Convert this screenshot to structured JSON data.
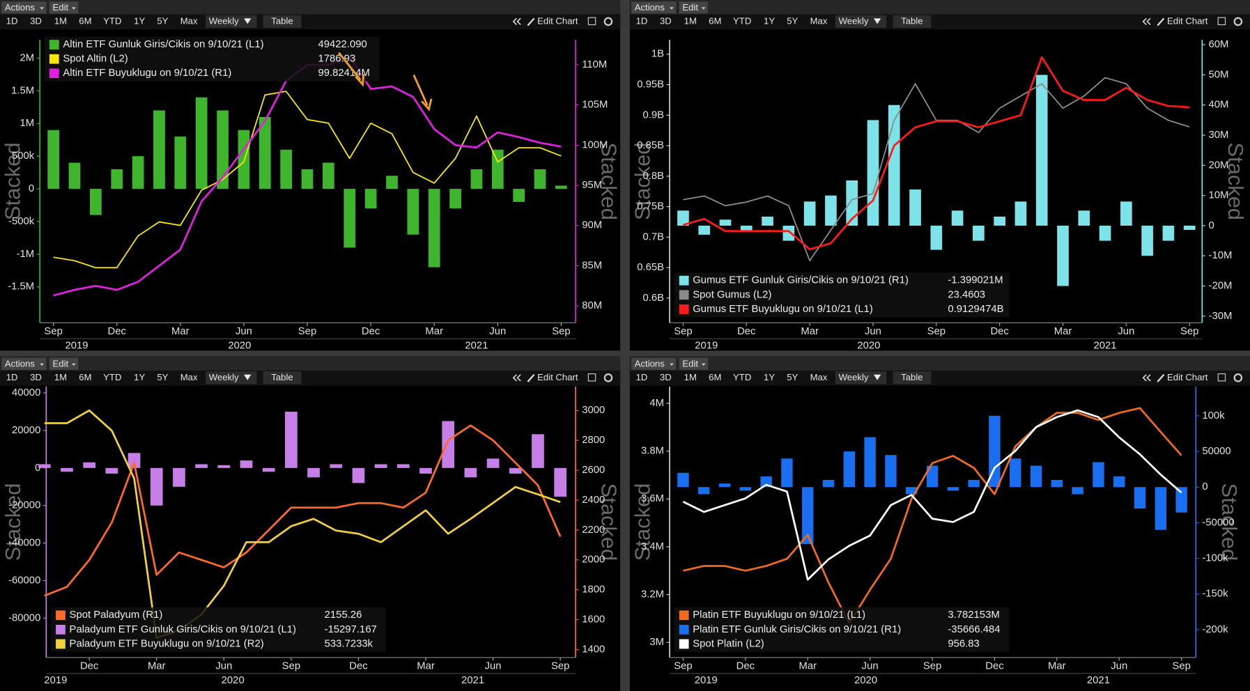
{
  "toolbar": {
    "actions": "Actions",
    "edit": "Edit",
    "ranges": [
      "1D",
      "3D",
      "1M",
      "6M",
      "YTD",
      "1Y",
      "5Y",
      "Max"
    ],
    "frequency": "Weekly",
    "table": "Table",
    "edit_chart": "Edit Chart"
  },
  "chart_data": [
    {
      "type": "combo",
      "ylabel": "Stacked",
      "y2label": "Stacked",
      "legend": "upper left",
      "x": [
        0,
        1,
        2,
        3,
        4,
        5,
        6,
        7,
        8,
        9,
        10,
        11,
        12,
        13,
        14,
        15,
        16,
        17,
        18,
        19,
        20,
        21,
        22,
        23,
        24
      ],
      "xlim": [
        -0.64,
        24.68
      ],
      "xticks": [
        {
          "value": 0,
          "label": "Sep"
        },
        {
          "value": 3,
          "label": "Dec"
        },
        {
          "value": 6,
          "label": "Mar"
        },
        {
          "value": 9,
          "label": "Jun"
        },
        {
          "value": 12,
          "label": "Sep"
        },
        {
          "value": 15,
          "label": "Dec"
        },
        {
          "value": 18,
          "label": "Mar"
        },
        {
          "value": 21,
          "label": "Jun"
        },
        {
          "value": 24,
          "label": "Sep"
        }
      ],
      "xgroups": [
        {
          "value": 1.1,
          "label": "2019"
        },
        {
          "value": 8.8,
          "label": "2020"
        },
        {
          "value": 20,
          "label": "2021"
        }
      ],
      "ylim": [
        -2050000,
        2280000
      ],
      "yticks": [
        {
          "value": 2000000,
          "label": "2M"
        },
        {
          "value": 1500000,
          "label": "1.5M"
        },
        {
          "value": 1000000,
          "label": "1M"
        },
        {
          "value": 500000,
          "label": "500k"
        },
        0,
        {
          "value": -500000,
          "label": "-500k"
        },
        {
          "value": -1000000,
          "label": "-1M"
        },
        {
          "value": -1500000,
          "label": "-1.5M"
        }
      ],
      "y2lim": [
        77900000,
        113100000
      ],
      "y2ticks": [
        {
          "value": 110000000,
          "label": "110M"
        },
        {
          "value": 105000000,
          "label": "105M"
        },
        {
          "value": 100000000,
          "label": "100M"
        },
        {
          "value": 95000000,
          "label": "95M"
        },
        {
          "value": 90000000,
          "label": "90M"
        },
        {
          "value": 85000000,
          "label": "85M"
        },
        {
          "value": 80000000,
          "label": "80M"
        }
      ],
      "y3lim": [
        1314,
        2116
      ],
      "ycolor": "#3fb52d",
      "y2color": "#e020e0",
      "series": [
        {
          "name": "Altin ETF Gunluk Giris/Cikis on 9/10/21 (L1)",
          "legend_value": "49422.090",
          "type": "bar",
          "axis": "y",
          "color": "#3fb52d",
          "values": [
            900000,
            400000,
            -400000,
            300000,
            500000,
            1200000,
            800000,
            1400000,
            1200000,
            900000,
            1100000,
            600000,
            300000,
            400000,
            -900000,
            -300000,
            200000,
            -700000,
            -1200000,
            -300000,
            300000,
            600000,
            -200000,
            300000,
            49422.09
          ]
        },
        {
          "name": "Spot Altin (L2)",
          "legend_value": "1786.93",
          "type": "line",
          "axis": "y3",
          "color": "#f5e50d",
          "values": [
            1500,
            1490,
            1470,
            1470,
            1560,
            1600,
            1590,
            1690,
            1720,
            1770,
            1960,
            1970,
            1890,
            1880,
            1780,
            1880,
            1850,
            1740,
            1710,
            1780,
            1900,
            1770,
            1810,
            1810,
            1786.93
          ]
        },
        {
          "name": "Altin ETF Buyuklugu on 9/10/21 (R1)",
          "legend_value": "99.82414M",
          "type": "line",
          "axis": "y2",
          "color": "#e020e0",
          "values": [
            81300000,
            82000000,
            82500000,
            82000000,
            83000000,
            85000000,
            87000000,
            93000000,
            96000000,
            99500000,
            103000000,
            108000000,
            110000000,
            110000000,
            111000000,
            107000000,
            107300000,
            106000000,
            102000000,
            100000000,
            99700000,
            101600000,
            101000000,
            100300000,
            99824140
          ]
        }
      ]
    },
    {
      "type": "combo",
      "ylabel": "Stacked",
      "y2label": "Stacked",
      "legend": "lower left",
      "x": [
        0,
        1,
        2,
        3,
        4,
        5,
        6,
        7,
        8,
        9,
        10,
        11,
        12,
        13,
        14,
        15,
        16,
        17,
        18,
        19,
        20,
        21,
        22,
        23,
        24
      ],
      "xlim": [
        -0.64,
        24.6
      ],
      "xticks": [
        {
          "value": 0,
          "label": "Sep"
        },
        {
          "value": 3,
          "label": "Dec"
        },
        {
          "value": 6,
          "label": "Mar"
        },
        {
          "value": 9,
          "label": "Jun"
        },
        {
          "value": 12,
          "label": "Sep"
        },
        {
          "value": 15,
          "label": "Dec"
        },
        {
          "value": 18,
          "label": "Mar"
        },
        {
          "value": 21,
          "label": "Jun"
        },
        {
          "value": 24,
          "label": "Sep"
        }
      ],
      "xgroups": [
        {
          "value": 1.1,
          "label": "2019"
        },
        {
          "value": 8.8,
          "label": "2020"
        },
        {
          "value": 20,
          "label": "2021"
        }
      ],
      "ylim": [
        559500000,
        1023500000
      ],
      "yticks": [
        {
          "value": 1000000000,
          "label": "1B"
        },
        {
          "value": 950000000,
          "label": "0.95B"
        },
        {
          "value": 900000000,
          "label": "0.9B"
        },
        {
          "value": 850000000,
          "label": "0.85B"
        },
        {
          "value": 800000000,
          "label": "0.8B"
        },
        {
          "value": 750000000,
          "label": "0.75B"
        },
        {
          "value": 700000000,
          "label": "0.7B"
        },
        {
          "value": 650000000,
          "label": "0.65B"
        },
        {
          "value": 600000000,
          "label": "0.6B"
        }
      ],
      "y2lim": [
        -32200000,
        61600000
      ],
      "y2ticks": [
        {
          "value": 60000000,
          "label": "60M"
        },
        {
          "value": 50000000,
          "label": "50M"
        },
        {
          "value": 40000000,
          "label": "40M"
        },
        {
          "value": 30000000,
          "label": "30M"
        },
        {
          "value": 20000000,
          "label": "20M"
        },
        {
          "value": 10000000,
          "label": "10M"
        },
        0,
        {
          "value": -10000000,
          "label": "-10M"
        },
        {
          "value": -20000000,
          "label": "-20M"
        },
        {
          "value": -30000000,
          "label": "-30M"
        }
      ],
      "y3lim": [
        7.4,
        30.6
      ],
      "ycolor": "#d0d0d0",
      "y2color": "#7de3e8",
      "series": [
        {
          "name": "Gumus ETF Gunluk Giris/Cikis on 9/10/21 (R1)",
          "legend_value": "-1.399021M",
          "type": "bar",
          "axis": "y2",
          "color": "#7de3e8",
          "values": [
            5000000,
            -3000000,
            2000000,
            -2000000,
            3000000,
            -5000000,
            8000000,
            10000000,
            15000000,
            35000000,
            40000000,
            12000000,
            -8000000,
            5000000,
            -5000000,
            3000000,
            8000000,
            50000000,
            -20000000,
            5000000,
            -5000000,
            8000000,
            -10000000,
            -5000000,
            -1399021
          ]
        },
        {
          "name": "Spot Gumus (L2)",
          "legend_value": "23.4603",
          "type": "line",
          "axis": "y3",
          "color": "#8a8a8a",
          "values": [
            17.5,
            17.8,
            17,
            17.3,
            17.8,
            17,
            12.5,
            15,
            17.5,
            18,
            24,
            27,
            24,
            24,
            23,
            25,
            26,
            27,
            25,
            26,
            27.5,
            27,
            25,
            24,
            23.4603
          ]
        },
        {
          "name": "Gumus ETF Buyuklugu on 9/10/21 (L1)",
          "legend_value": "0.9129474B",
          "type": "line",
          "axis": "y",
          "color": "#ff1a1a",
          "values": [
            720000000,
            730000000,
            710000000,
            710000000,
            710000000,
            710000000,
            680000000,
            690000000,
            730000000,
            760000000,
            850000000,
            880000000,
            890000000,
            890000000,
            880000000,
            890000000,
            900000000,
            995000000,
            940000000,
            925000000,
            925000000,
            945000000,
            925000000,
            915000000,
            912947400
          ]
        }
      ]
    },
    {
      "type": "combo",
      "ylabel": "Stacked",
      "y2label": "Stacked",
      "legend": "lower left",
      "x": [
        1,
        2,
        3,
        4,
        5,
        6,
        7,
        8,
        9,
        10,
        11,
        12,
        13,
        14,
        15,
        16,
        17,
        18,
        19,
        20,
        21,
        22,
        23,
        24
      ],
      "xlim": [
        1.08,
        24.68
      ],
      "xticks": [
        {
          "value": 3,
          "label": "Dec"
        },
        {
          "value": 6,
          "label": "Mar"
        },
        {
          "value": 9,
          "label": "Jun"
        },
        {
          "value": 12,
          "label": "Sep"
        },
        {
          "value": 15,
          "label": "Dec"
        },
        {
          "value": 18,
          "label": "Mar"
        },
        {
          "value": 21,
          "label": "Jun"
        },
        {
          "value": 24,
          "label": "Sep"
        }
      ],
      "xgroups": [
        {
          "value": 1.5,
          "label": "2019"
        },
        {
          "value": 9.4,
          "label": "2020"
        },
        {
          "value": 20.1,
          "label": "2021"
        }
      ],
      "ylim": [
        -101000,
        43400
      ],
      "yticks": [
        40000,
        20000,
        0,
        -20000,
        -40000,
        -60000,
        -80000
      ],
      "y2lim": [
        1347,
        3160
      ],
      "y2ticks": [
        3000,
        2800,
        2600,
        2400,
        2200,
        2000,
        1800,
        1600,
        1400
      ],
      "y3lim": [
        387500,
        642500
      ],
      "ycolor": "#c77fe8",
      "y2color": "#ff6a2a",
      "series": [
        {
          "name": "Spot Paladyum (R1)",
          "legend_value": "2155.26",
          "type": "line",
          "axis": "y2",
          "color": "#ff6a2a",
          "values": [
            1760,
            1820,
            2000,
            2250,
            2650,
            1900,
            2050,
            2000,
            1950,
            2050,
            2200,
            2350,
            2350,
            2350,
            2380,
            2380,
            2350,
            2450,
            2800,
            2900,
            2800,
            2650,
            2500,
            2155.26
          ]
        },
        {
          "name": "Paladyum ETF Gunluk Giris/Cikis on 9/10/21 (L1)",
          "legend_value": "-15297.167",
          "type": "bar",
          "axis": "y",
          "color": "#c77fe8",
          "values": [
            2000,
            -2000,
            3000,
            -3000,
            8000,
            -20000,
            -10000,
            2000,
            1500,
            4000,
            -2000,
            30000,
            -5000,
            2000,
            -8000,
            2000,
            2000,
            -3000,
            25000,
            -5000,
            5000,
            -3000,
            18000,
            -15297.167
          ]
        },
        {
          "name": "Paladyum ETF Buyuklugu on 9/10/21 (R2)",
          "legend_value": "533.7233k",
          "type": "line",
          "axis": "y3",
          "color": "#f0d040",
          "values": [
            608000,
            608000,
            620000,
            601000,
            556000,
            406000,
            413000,
            428000,
            455000,
            496000,
            496000,
            511000,
            518000,
            507000,
            504000,
            496000,
            511000,
            526000,
            504000,
            518000,
            533000,
            548000,
            541000,
            533723.3
          ]
        }
      ]
    },
    {
      "type": "combo",
      "ylabel": "Stacked",
      "y2label": "Stacked",
      "legend": "lower left",
      "x": [
        0,
        1,
        2,
        3,
        4,
        5,
        6,
        7,
        8,
        9,
        10,
        11,
        12,
        13,
        14,
        15,
        16,
        17,
        18,
        19,
        20,
        21,
        22,
        23,
        24
      ],
      "xlim": [
        -0.65,
        24.69
      ],
      "xticks": [
        {
          "value": 0,
          "label": "Sep"
        },
        {
          "value": 3,
          "label": "Dec"
        },
        {
          "value": 6,
          "label": "Mar"
        },
        {
          "value": 9,
          "label": "Jun"
        },
        {
          "value": 12,
          "label": "Sep"
        },
        {
          "value": 15,
          "label": "Dec"
        },
        {
          "value": 18,
          "label": "Mar"
        },
        {
          "value": 21,
          "label": "Jun"
        },
        {
          "value": 24,
          "label": "Sep"
        }
      ],
      "xgroups": [
        {
          "value": 1.1,
          "label": "2019"
        },
        {
          "value": 8.8,
          "label": "2020"
        },
        {
          "value": 20,
          "label": "2021"
        }
      ],
      "ylim": [
        2937000,
        4070000
      ],
      "yticks": [
        {
          "value": 4000000,
          "label": "4M"
        },
        {
          "value": 3800000,
          "label": "3.8M"
        },
        {
          "value": 3600000,
          "label": "3.6M"
        },
        {
          "value": 3400000,
          "label": "3.4M"
        },
        {
          "value": 3200000,
          "label": "3.2M"
        },
        {
          "value": 3000000,
          "label": "3M"
        }
      ],
      "y2lim": [
        -239000,
        141000
      ],
      "y2ticks": [
        {
          "value": 100000,
          "label": "100k"
        },
        50000,
        0,
        -50000,
        {
          "value": -100000,
          "label": "-100k"
        },
        {
          "value": -150000,
          "label": "-150k"
        },
        {
          "value": -200000,
          "label": "-200k"
        }
      ],
      "y3lim": [
        470,
        1270
      ],
      "ycolor": "#d0d0d0",
      "y2color": "#1a6ff0",
      "series": [
        {
          "name": "Platin ETF Buyuklugu on 9/10/21 (L1)",
          "legend_value": "3.782153M",
          "type": "line",
          "axis": "y",
          "color": "#f06a20",
          "values": [
            3300000,
            3320000,
            3320000,
            3300000,
            3320000,
            3350000,
            3450000,
            3250000,
            3080000,
            3220000,
            3350000,
            3600000,
            3750000,
            3780000,
            3730000,
            3620000,
            3820000,
            3900000,
            3960000,
            3960000,
            3930000,
            3960000,
            3980000,
            3880000,
            3782153
          ]
        },
        {
          "name": "Platin ETF Gunluk Giris/Cikis on 9/10/21 (R1)",
          "legend_value": "-35666.484",
          "type": "bar",
          "axis": "y2",
          "color": "#1a6ff0",
          "values": [
            20000,
            -10000,
            5000,
            -5000,
            15000,
            40000,
            -80000,
            10000,
            50000,
            70000,
            45000,
            -10000,
            30000,
            -5000,
            10000,
            100000,
            40000,
            30000,
            10000,
            -10000,
            35000,
            15000,
            -30000,
            -60000,
            -35666.484
          ]
        },
        {
          "name": "Spot Platin (L2)",
          "legend_value": "956.83",
          "type": "line",
          "axis": "y3",
          "color": "#ffffff",
          "values": [
            930,
            900,
            920,
            940,
            980,
            960,
            700,
            760,
            800,
            830,
            920,
            950,
            880,
            870,
            900,
            1030,
            1080,
            1150,
            1180,
            1200,
            1180,
            1120,
            1070,
            1010,
            956.83
          ]
        }
      ]
    }
  ]
}
